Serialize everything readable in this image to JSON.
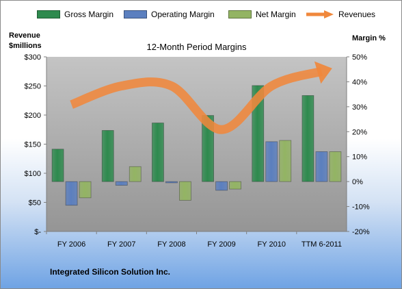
{
  "legend": {
    "gross": "Gross Margin",
    "operating": "Operating Margin",
    "net": "Net Margin",
    "revenues": "Revenues"
  },
  "left_axis_label_line1": "Revenue",
  "left_axis_label_line2": "$millions",
  "right_axis_label": "Margin %",
  "company": "Integrated Silicon Solution Inc.",
  "colors": {
    "gross": "#2e8a4e",
    "operating": "#5b7fbf",
    "net": "#93b463",
    "revenues": "#f0883c",
    "plot_area": "#b3b3b3"
  },
  "chart_data": {
    "type": "bar",
    "title": "12-Month Period Margins",
    "categories": [
      "FY 2006",
      "FY 2007",
      "FY 2008",
      "FY 2009",
      "FY 2010",
      "TTM 6-2011"
    ],
    "series": [
      {
        "name": "Gross Margin",
        "axis": "right",
        "values": [
          13,
          20.5,
          23.5,
          26.5,
          38.5,
          34.5
        ]
      },
      {
        "name": "Operating Margin",
        "axis": "right",
        "values": [
          -9.5,
          -1.5,
          -0.5,
          -3.5,
          16,
          12
        ]
      },
      {
        "name": "Net Margin",
        "axis": "right",
        "values": [
          -6.5,
          6,
          -7.5,
          -3,
          16.5,
          12
        ]
      },
      {
        "name": "Revenues",
        "axis": "left",
        "type": "line",
        "values": [
          218,
          250,
          250,
          175,
          250,
          275
        ]
      }
    ],
    "left_axis": {
      "ylim": [
        0,
        300
      ],
      "ticks": [
        "$-",
        "$50",
        "$100",
        "$150",
        "$200",
        "$250",
        "$300"
      ]
    },
    "right_axis": {
      "ylim": [
        -20,
        50
      ],
      "ticks": [
        "-20%",
        "-10%",
        "0%",
        "10%",
        "20%",
        "30%",
        "40%",
        "50%"
      ]
    },
    "grid": false,
    "legend_position": "top"
  }
}
